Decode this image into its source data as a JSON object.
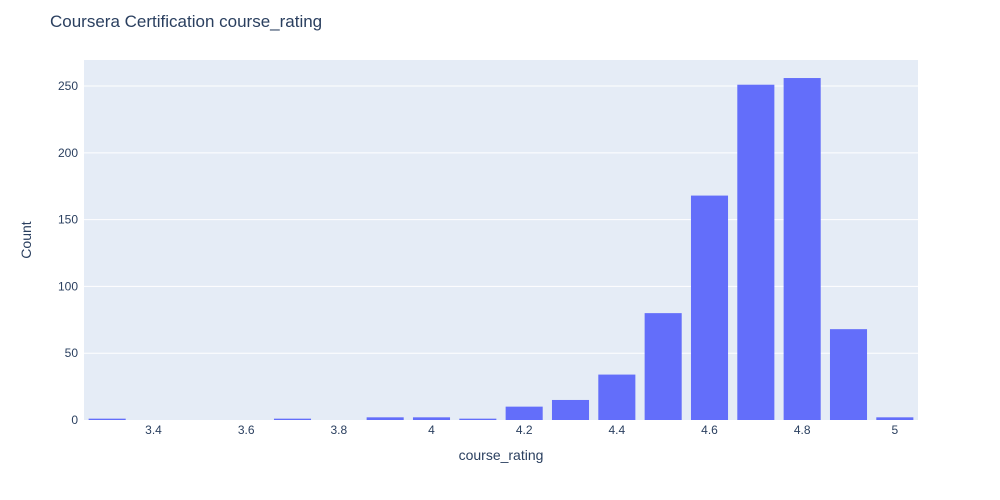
{
  "chart_data": {
    "type": "bar",
    "title": "Coursera Certification course_rating",
    "xlabel": "course_rating",
    "ylabel": "Count",
    "x": [
      3.3,
      3.4,
      3.5,
      3.6,
      3.7,
      3.8,
      3.9,
      4.0,
      4.1,
      4.2,
      4.3,
      4.4,
      4.5,
      4.6,
      4.7,
      4.8,
      4.9,
      5.0
    ],
    "values": [
      1,
      0,
      0,
      0,
      1,
      0,
      2,
      2,
      1,
      10,
      15,
      34,
      80,
      168,
      251,
      256,
      68,
      2
    ],
    "xlim": [
      3.25,
      5.05
    ],
    "ylim": [
      0,
      269.5
    ],
    "x_ticks": [
      "3.4",
      "3.6",
      "3.8",
      "4",
      "4.2",
      "4.4",
      "4.6",
      "4.8",
      "5"
    ],
    "x_tick_values": [
      3.4,
      3.6,
      3.8,
      4.0,
      4.2,
      4.4,
      4.6,
      4.8,
      5.0
    ],
    "y_ticks": [
      "0",
      "50",
      "100",
      "150",
      "200",
      "250"
    ],
    "y_tick_values": [
      0,
      50,
      100,
      150,
      200,
      250
    ],
    "bar_color": "#636efa",
    "plot_bg": "#e5ecf6",
    "grid": true
  }
}
